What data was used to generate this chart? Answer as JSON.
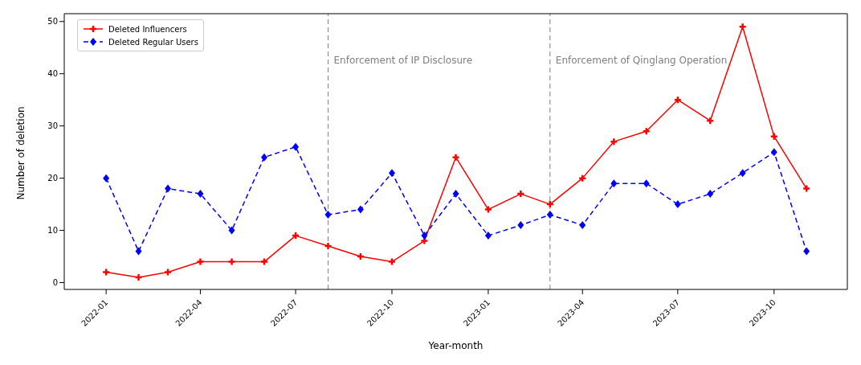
{
  "chart_data": {
    "type": "line",
    "xlabel": "Year-month",
    "ylabel": "Number of deletion",
    "x": [
      "2022-01",
      "2022-02",
      "2022-03",
      "2022-04",
      "2022-05",
      "2022-06",
      "2022-07",
      "2022-08",
      "2022-09",
      "2022-10",
      "2022-11",
      "2022-12",
      "2023-01",
      "2023-02",
      "2023-03",
      "2023-04",
      "2023-05",
      "2023-06",
      "2023-07",
      "2023-08",
      "2023-09",
      "2023-10",
      "2023-11"
    ],
    "series": [
      {
        "name": "Deleted Influencers",
        "color": "#ff0000",
        "marker": "cross",
        "line_style": "solid",
        "values": [
          2,
          1,
          2,
          4,
          4,
          4,
          9,
          7,
          5,
          4,
          8,
          24,
          14,
          17,
          15,
          20,
          27,
          29,
          35,
          31,
          49,
          28,
          18
        ]
      },
      {
        "name": "Deleted Regular Users",
        "color": "#0000ff",
        "marker": "diamond",
        "line_style": "dashed",
        "values": [
          20,
          6,
          18,
          17,
          10,
          24,
          26,
          13,
          14,
          21,
          9,
          17,
          9,
          11,
          13,
          11,
          19,
          19,
          15,
          17,
          21,
          25,
          6
        ]
      }
    ],
    "xlim": [
      "2021-11-22",
      "2023-12-10"
    ],
    "xticks": [
      "2022-01",
      "2022-04",
      "2022-07",
      "2022-10",
      "2023-01",
      "2023-04",
      "2023-07",
      "2023-10"
    ],
    "ylim": [
      -1.3,
      51.5
    ],
    "yticks": [
      0,
      10,
      20,
      30,
      40,
      50
    ],
    "ref_lines": [
      {
        "axis": "x",
        "value": "2022-08",
        "label": "Enforcement of IP Disclosure",
        "color": "#808080",
        "line_style": "dashed"
      },
      {
        "axis": "x",
        "value": "2023-03",
        "label": "Enforcement of Qinglang Operation",
        "color": "#808080",
        "line_style": "dashed"
      }
    ],
    "grid": false,
    "legend": "top left"
  }
}
